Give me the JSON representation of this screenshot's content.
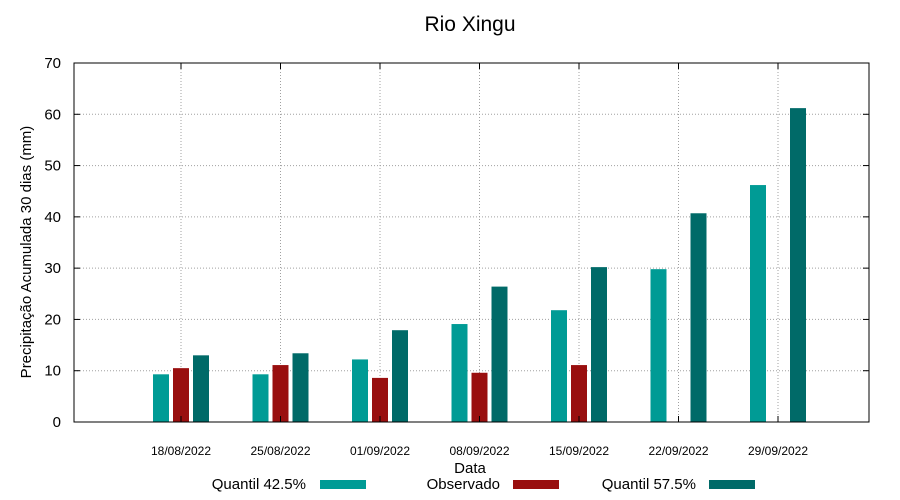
{
  "chart_data": {
    "type": "bar",
    "title": "Rio Xingu",
    "xlabel": "Data",
    "ylabel": "Precipitação Acumulada 30 dias (mm)",
    "categories": [
      "18/08/2022",
      "25/08/2022",
      "01/09/2022",
      "08/09/2022",
      "15/09/2022",
      "22/09/2022",
      "29/09/2022"
    ],
    "series": [
      {
        "name": "Quantil 42.5%",
        "color": "#009b95",
        "values": [
          9.3,
          9.3,
          12.2,
          19.1,
          21.8,
          29.8,
          46.2
        ]
      },
      {
        "name": "Observado",
        "color": "#990f0f",
        "values": [
          10.5,
          11.1,
          8.6,
          9.6,
          11.1,
          null,
          null
        ]
      },
      {
        "name": "Quantil 57.5%",
        "color": "#006a68",
        "values": [
          13.0,
          13.4,
          17.9,
          26.4,
          30.2,
          40.7,
          61.2
        ]
      }
    ],
    "ylim": [
      0,
      70
    ],
    "yticks": [
      0,
      10,
      20,
      30,
      40,
      50,
      60,
      70
    ],
    "grid": true,
    "legend_position": "bottom"
  }
}
